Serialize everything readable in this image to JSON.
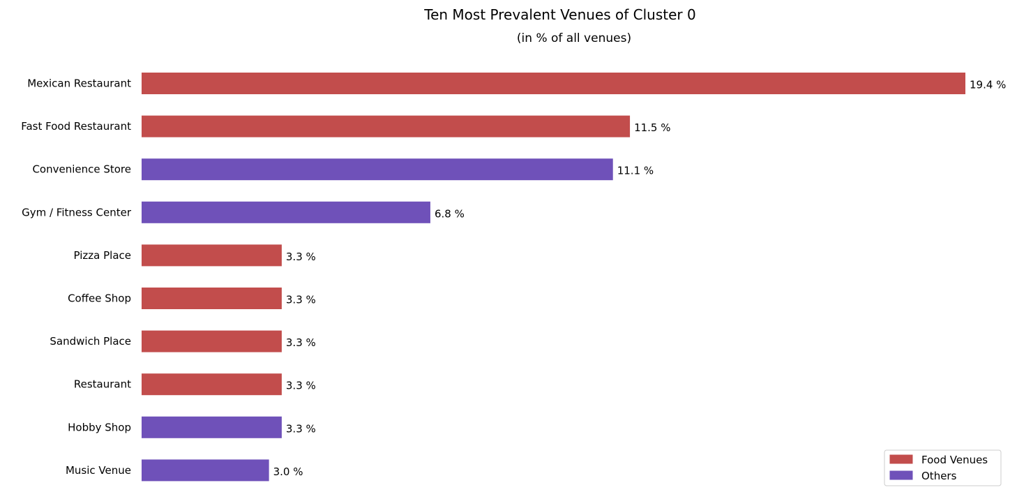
{
  "chart_data": {
    "type": "bar",
    "orientation": "horizontal",
    "title": "Ten Most Prevalent Venues of Cluster 0",
    "subtitle": "(in % of all venues)",
    "xlabel": "",
    "ylabel": "",
    "xlim": [
      0,
      19.4
    ],
    "value_suffix": " %",
    "grid": false,
    "legend_position": "bottom-right",
    "categories": [
      "Mexican Restaurant",
      "Fast Food Restaurant",
      "Convenience Store",
      "Gym / Fitness Center",
      "Pizza Place",
      "Coffee Shop",
      "Sandwich Place",
      "Restaurant",
      "Hobby Shop",
      "Music Venue"
    ],
    "values": [
      19.4,
      11.5,
      11.1,
      6.8,
      3.3,
      3.3,
      3.3,
      3.3,
      3.3,
      3.0
    ],
    "value_labels": [
      "19.4 %",
      "11.5 %",
      "11.1 %",
      "6.8 %",
      "3.3 %",
      "3.3 %",
      "3.3 %",
      "3.3 %",
      "3.3 %",
      "3.0 %"
    ],
    "groups": [
      "Food Venues",
      "Food Venues",
      "Others",
      "Others",
      "Food Venues",
      "Food Venues",
      "Food Venues",
      "Food Venues",
      "Others",
      "Others"
    ],
    "legend": [
      {
        "name": "Food Venues",
        "color": "#c24d4c"
      },
      {
        "name": "Others",
        "color": "#6f51b9"
      }
    ]
  }
}
